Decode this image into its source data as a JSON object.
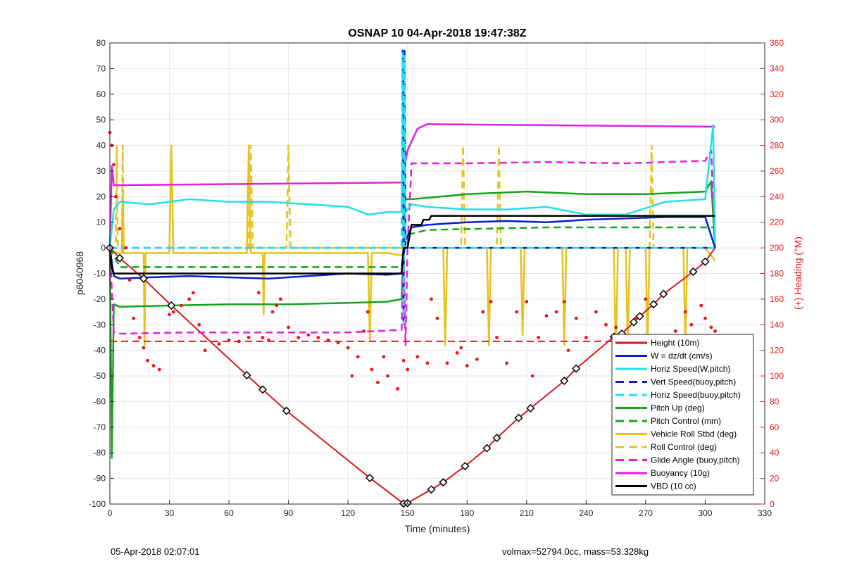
{
  "footer": {
    "left": "05-Apr-2018 02:07:01",
    "right": "volmax=52794.0cc, mass=53.328kg"
  },
  "colors": {
    "height": "#d7191c",
    "w": "#0b1ec8",
    "horiz_speed": "#22e0e8",
    "pitch": "#16a31d",
    "roll": "#e6c21a",
    "glide": "#e01fe0",
    "buoyancy": "#e01fe0",
    "vbd": "#000000",
    "heading": "#e8161b"
  },
  "chart_data": {
    "type": "line",
    "title": "OSNAP 10 04-Apr-2018 19:47:38Z",
    "xlabel": "Time (minutes)",
    "ylabel": "p6040968",
    "y2label": "(+) Heading (°M)",
    "xlim": [
      0,
      330
    ],
    "ylim": [
      -100,
      80
    ],
    "y2lim": [
      0,
      360
    ],
    "xticks": [
      0,
      30,
      60,
      90,
      120,
      150,
      180,
      210,
      240,
      270,
      300,
      330
    ],
    "yticks": [
      -100,
      -90,
      -80,
      -70,
      -60,
      -50,
      -40,
      -30,
      -20,
      -10,
      0,
      10,
      20,
      30,
      40,
      50,
      60,
      70,
      80
    ],
    "y2ticks": [
      0,
      20,
      40,
      60,
      80,
      100,
      120,
      140,
      160,
      180,
      200,
      220,
      240,
      260,
      280,
      300,
      320,
      340,
      360
    ],
    "grid": true,
    "legend_position": "bottom-right",
    "series": [
      {
        "name": "Height (10m)",
        "style": "solid",
        "color": "#d7191c",
        "x": [
          0,
          5,
          17,
          31,
          69,
          77,
          89,
          131,
          148,
          150,
          162,
          168,
          179,
          190,
          195,
          206,
          212,
          229,
          235,
          254,
          258,
          264,
          267,
          274,
          279,
          294,
          300,
          305
        ],
        "y": [
          0,
          -4,
          -12,
          -22.5,
          -49.7,
          -55.3,
          -63.6,
          -89.8,
          -99.8,
          -99.6,
          -94.3,
          -91.5,
          -85.2,
          -78.2,
          -74.2,
          -66.4,
          -62.6,
          -51.9,
          -47.1,
          -34.7,
          -33.5,
          -29.0,
          -26.7,
          -22.0,
          -18.0,
          -9.3,
          -5.4,
          0
        ]
      },
      {
        "name": "W = dz/dt (cm/s)",
        "style": "solid",
        "color": "#0b1ec8",
        "x": [
          0,
          2,
          5,
          20,
          40,
          60,
          80,
          100,
          120,
          140,
          147,
          149,
          152,
          160,
          180,
          200,
          220,
          240,
          260,
          280,
          300,
          305
        ],
        "y": [
          0,
          -11,
          -12,
          -11.5,
          -11,
          -11.5,
          -12,
          -11,
          -10,
          -10.5,
          -10,
          3,
          8,
          9,
          10,
          10.5,
          10,
          11,
          11.5,
          12,
          12,
          0
        ]
      },
      {
        "name": "Horiz Speed(W,pitch)",
        "style": "solid",
        "color": "#22e0e8",
        "x": [
          0,
          2,
          5,
          20,
          40,
          60,
          80,
          100,
          120,
          130,
          140,
          147,
          148,
          149,
          152,
          160,
          180,
          200,
          220,
          240,
          260,
          280,
          300,
          304,
          305
        ],
        "y": [
          0,
          15,
          18,
          17,
          19,
          18,
          18,
          17,
          16,
          13,
          14,
          14,
          70,
          14,
          17,
          16,
          15,
          15,
          16,
          13,
          13,
          18,
          19,
          48,
          0
        ]
      },
      {
        "name": "Vert Speed(buoy,pitch)",
        "style": "dashed",
        "color": "#0b1ec8",
        "x": [
          0,
          147,
          147.5,
          148,
          148.5,
          149,
          305
        ],
        "y": [
          0,
          0,
          77,
          -30,
          77,
          0,
          0
        ]
      },
      {
        "name": "Horiz Speed(buoy,pitch)",
        "style": "dashed",
        "color": "#22e0e8",
        "x": [
          0,
          147,
          147.5,
          148,
          148.5,
          149,
          305
        ],
        "y": [
          0,
          0,
          76,
          -30,
          75,
          0,
          0
        ]
      },
      {
        "name": "Pitch Up (deg)",
        "style": "solid",
        "color": "#16a31d",
        "x": [
          0,
          1,
          2,
          5,
          30,
          60,
          90,
          120,
          140,
          147,
          149,
          152,
          180,
          210,
          240,
          270,
          300,
          303,
          305
        ],
        "y": [
          0,
          -82,
          -22,
          -23,
          -22.5,
          -22,
          -22,
          -21.5,
          -21,
          -20,
          19,
          19,
          21,
          22,
          21,
          21,
          22,
          26,
          0
        ]
      },
      {
        "name": "Pitch Control (mm)",
        "style": "dashed",
        "color": "#16a31d",
        "x": [
          0,
          5,
          147,
          149,
          160,
          220,
          305
        ],
        "y": [
          0,
          -7.5,
          -7.5,
          5,
          7,
          8,
          8
        ]
      },
      {
        "name": "Vehicle Roll Stbd (deg)",
        "style": "solid",
        "color": "#e6c21a",
        "x": [
          0,
          3,
          6,
          6.5,
          7,
          17,
          17.5,
          18,
          30,
          31,
          32,
          69,
          70,
          71,
          77,
          77.5,
          78,
          90,
          130,
          131,
          132,
          140,
          147,
          149,
          152,
          168,
          169,
          170,
          190,
          191,
          192,
          207,
          208,
          209,
          228,
          229,
          230,
          254,
          255,
          256,
          260,
          261,
          262,
          270,
          271,
          272,
          289,
          290,
          291,
          300,
          305
        ],
        "y": [
          0,
          -2,
          -2,
          22,
          -2,
          -2,
          -38,
          -2,
          -2,
          40,
          -2,
          -2,
          40,
          -2,
          -2,
          -26,
          -2,
          -2,
          -2,
          -36,
          -2,
          -2,
          -3,
          0,
          0,
          0,
          -38,
          0,
          0,
          -38,
          0,
          0,
          -34,
          0,
          0,
          -38,
          0,
          0,
          -45,
          0,
          0,
          -40,
          0,
          0,
          -38,
          0,
          0,
          -38,
          0,
          0,
          -5
        ]
      },
      {
        "name": "Roll Control (deg)",
        "style": "dashed",
        "color": "#e6c21a",
        "x": [
          0,
          3,
          3.5,
          4,
          6,
          6.5,
          7,
          17,
          30,
          31,
          32,
          70,
          71,
          72,
          89,
          90,
          91,
          148,
          150,
          177,
          178,
          179,
          195,
          196,
          197,
          272,
          273,
          274,
          305
        ],
        "y": [
          0,
          0,
          40,
          0,
          0,
          40,
          0,
          0,
          0,
          40,
          0,
          0,
          40,
          0,
          0,
          40,
          0,
          0,
          0,
          0,
          40,
          0,
          0,
          40,
          0,
          0,
          40,
          0,
          0
        ]
      },
      {
        "name": "Glide Angle (buoy,pitch)",
        "style": "dashed",
        "color": "#e01fe0",
        "x": [
          0,
          2,
          5,
          40,
          80,
          120,
          147,
          148,
          149,
          150,
          152,
          180,
          220,
          260,
          300,
          303,
          305
        ],
        "y": [
          0,
          -33,
          -33.5,
          -33,
          -33,
          -33,
          -32,
          0,
          -38,
          0,
          33,
          33,
          33.5,
          33,
          34,
          38,
          0
        ]
      },
      {
        "name": "Buoyancy (10g)",
        "style": "solid",
        "color": "#e01fe0",
        "x": [
          0,
          1,
          2,
          5,
          147,
          150,
          155,
          160,
          305
        ],
        "y": [
          0,
          32,
          24.5,
          24.5,
          25.5,
          38,
          46.5,
          48.3,
          47.3
        ]
      },
      {
        "name": "VBD (10 cc)",
        "style": "solid",
        "color": "#000000",
        "x": [
          0,
          1,
          2,
          5,
          147,
          148,
          150,
          152,
          157,
          158,
          161,
          162,
          200,
          305
        ],
        "y": [
          0,
          -8,
          -10,
          -10,
          -10,
          0,
          0,
          9,
          9,
          11,
          11,
          12.5,
          12.5,
          12.5
        ]
      }
    ],
    "markers": {
      "height_at": [
        [
          0,
          0
        ],
        [
          5,
          -4
        ],
        [
          17,
          -12
        ],
        [
          31,
          -22.5
        ],
        [
          69,
          -49.7
        ],
        [
          77,
          -55.3
        ],
        [
          89,
          -63.6
        ],
        [
          131,
          -89.8
        ],
        [
          148,
          -99.8
        ],
        [
          150,
          -99.6
        ],
        [
          162,
          -94.3
        ],
        [
          168,
          -91.5
        ],
        [
          179,
          -85.2
        ],
        [
          190,
          -78.2
        ],
        [
          195,
          -74.2
        ],
        [
          206,
          -66.4
        ],
        [
          212,
          -62.6
        ],
        [
          229,
          -51.9
        ],
        [
          235,
          -47.1
        ],
        [
          254,
          -34.7
        ],
        [
          258,
          -33.5
        ],
        [
          264,
          -29.0
        ],
        [
          267,
          -26.7
        ],
        [
          274,
          -22.0
        ],
        [
          279,
          -18.0
        ],
        [
          294,
          -9.3
        ],
        [
          300,
          -5.4
        ]
      ]
    },
    "heading_ref": 127,
    "heading": [
      [
        0,
        290
      ],
      [
        1,
        280
      ],
      [
        2,
        265
      ],
      [
        3,
        240
      ],
      [
        5,
        215
      ],
      [
        8,
        200
      ],
      [
        10,
        175
      ],
      [
        12,
        145
      ],
      [
        15,
        130
      ],
      [
        17,
        122
      ],
      [
        19,
        112
      ],
      [
        22,
        108
      ],
      [
        25,
        105
      ],
      [
        30,
        148
      ],
      [
        32,
        150
      ],
      [
        36,
        155
      ],
      [
        40,
        160
      ],
      [
        42,
        165
      ],
      [
        45,
        140
      ],
      [
        48,
        120
      ],
      [
        55,
        125
      ],
      [
        60,
        128
      ],
      [
        65,
        127
      ],
      [
        70,
        130
      ],
      [
        75,
        165
      ],
      [
        77,
        130
      ],
      [
        80,
        128
      ],
      [
        82,
        150
      ],
      [
        84,
        155
      ],
      [
        86,
        160
      ],
      [
        90,
        138
      ],
      [
        95,
        130
      ],
      [
        100,
        132
      ],
      [
        105,
        130
      ],
      [
        110,
        128
      ],
      [
        115,
        126
      ],
      [
        120,
        122
      ],
      [
        122,
        100
      ],
      [
        125,
        115
      ],
      [
        128,
        135
      ],
      [
        130,
        150
      ],
      [
        132,
        105
      ],
      [
        135,
        95
      ],
      [
        138,
        115
      ],
      [
        140,
        100
      ],
      [
        145,
        90
      ],
      [
        148,
        112
      ],
      [
        150,
        105
      ],
      [
        155,
        115
      ],
      [
        160,
        110
      ],
      [
        162,
        160
      ],
      [
        165,
        145
      ],
      [
        170,
        110
      ],
      [
        175,
        118
      ],
      [
        177,
        122
      ],
      [
        180,
        108
      ],
      [
        185,
        113
      ],
      [
        188,
        150
      ],
      [
        192,
        158
      ],
      [
        195,
        130
      ],
      [
        200,
        110
      ],
      [
        205,
        150
      ],
      [
        210,
        158
      ],
      [
        213,
        100
      ],
      [
        216,
        130
      ],
      [
        220,
        147
      ],
      [
        225,
        150
      ],
      [
        229,
        158
      ],
      [
        231,
        120
      ],
      [
        235,
        145
      ],
      [
        240,
        130
      ],
      [
        245,
        150
      ],
      [
        250,
        140
      ],
      [
        255,
        138
      ],
      [
        260,
        125
      ],
      [
        265,
        145
      ],
      [
        270,
        160
      ],
      [
        273,
        130
      ],
      [
        275,
        128
      ],
      [
        280,
        120
      ],
      [
        285,
        135
      ],
      [
        290,
        150
      ],
      [
        293,
        140
      ],
      [
        295,
        130
      ],
      [
        298,
        155
      ],
      [
        300,
        145
      ],
      [
        303,
        138
      ],
      [
        305,
        135
      ]
    ]
  }
}
